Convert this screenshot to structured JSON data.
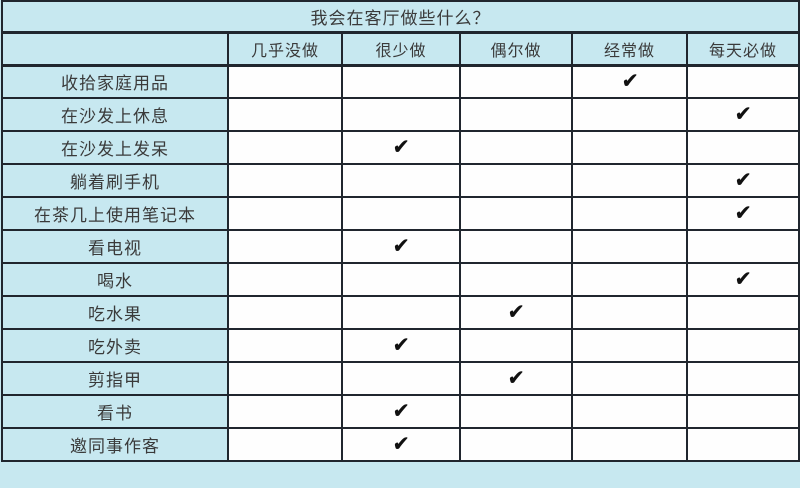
{
  "table": {
    "title": "我会在客厅做些什么？",
    "columns": [
      "几乎没做",
      "很少做",
      "偶尔做",
      "经常做",
      "每天必做"
    ],
    "rows": [
      {
        "label": "收拾家庭用品",
        "checked": 3
      },
      {
        "label": "在沙发上休息",
        "checked": 4
      },
      {
        "label": "在沙发上发呆",
        "checked": 1
      },
      {
        "label": "躺着刷手机",
        "checked": 4
      },
      {
        "label": "在茶几上使用笔记本",
        "checked": 4
      },
      {
        "label": "看电视",
        "checked": 1
      },
      {
        "label": "喝水",
        "checked": 4
      },
      {
        "label": "吃水果",
        "checked": 2
      },
      {
        "label": "吃外卖",
        "checked": 1
      },
      {
        "label": "剪指甲",
        "checked": 2
      },
      {
        "label": "看书",
        "checked": 1
      },
      {
        "label": "邀同事作客",
        "checked": 1
      }
    ],
    "check_glyph": "✔",
    "colors": {
      "cell_blue": "#c7e8f0",
      "cell_white": "#fefefe",
      "border": "#20262e",
      "text": "#3a3a3a",
      "check": "#111111"
    }
  }
}
